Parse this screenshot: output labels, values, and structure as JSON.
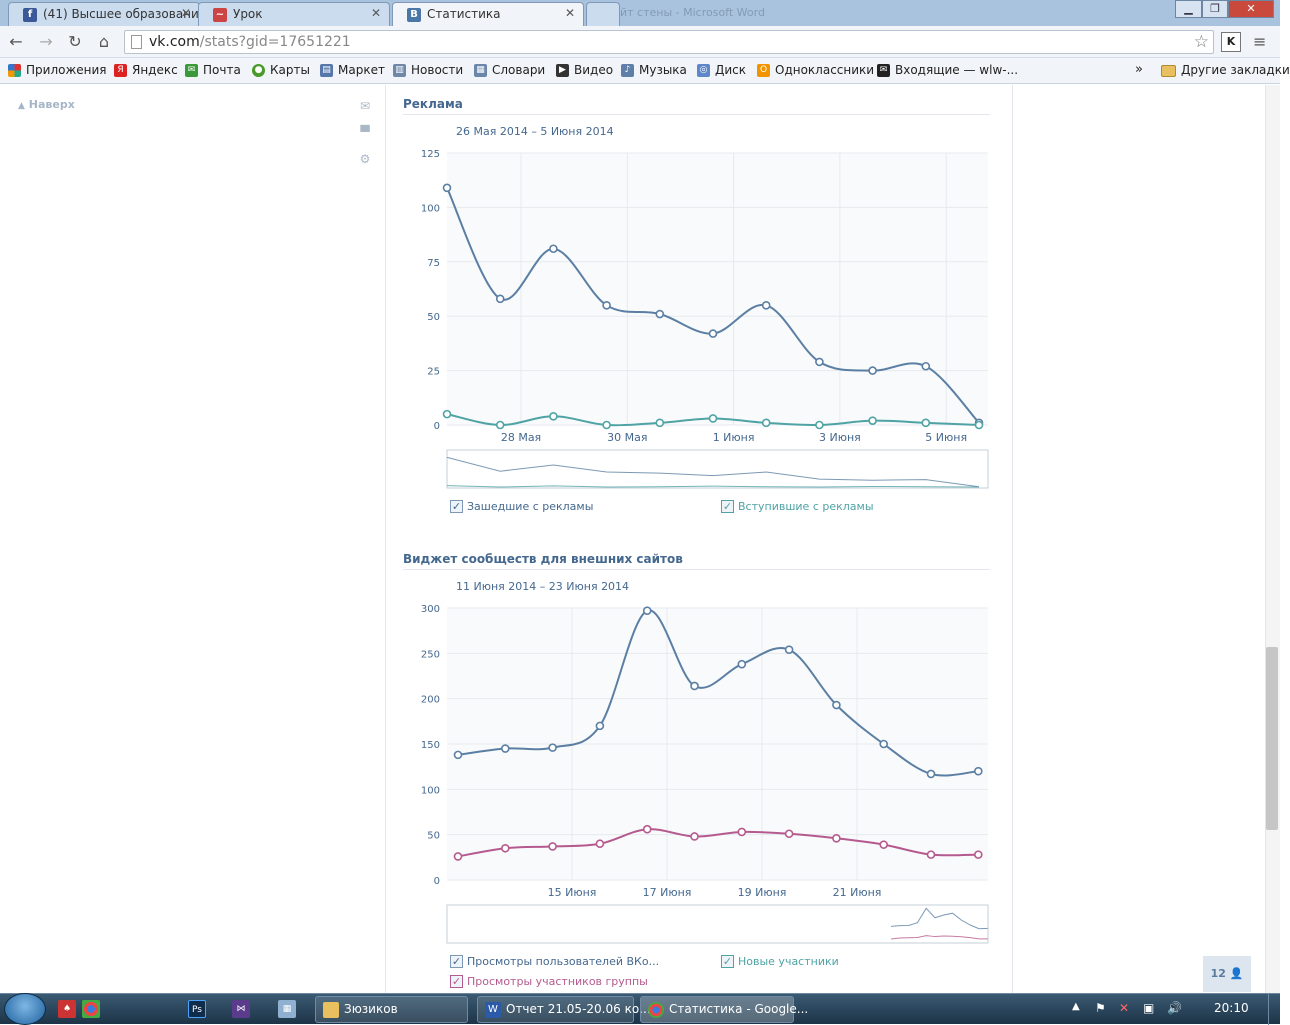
{
  "tabs": [
    {
      "label": "(41) Высшее образовани",
      "icon": "facebook-icon",
      "active": false
    },
    {
      "label": "Урок",
      "icon": "chart-icon",
      "active": false
    },
    {
      "label": "Статистика",
      "icon": "vk-icon",
      "active": true
    },
    {
      "label": "",
      "icon": "new-tab-icon",
      "active": false
    }
  ],
  "background_window_title": "йт стены - Microsoft Word",
  "toolbar": {
    "url_host": "vk.com",
    "url_path": "/stats?gid=17651221"
  },
  "bookmarks": [
    {
      "label": "Приложения",
      "icon": "apps-icon"
    },
    {
      "label": "Яндекс",
      "icon": "yandex-icon"
    },
    {
      "label": "Почта",
      "icon": "mail-icon"
    },
    {
      "label": "Карты",
      "icon": "maps-icon"
    },
    {
      "label": "Маркет",
      "icon": "market-icon"
    },
    {
      "label": "Новости",
      "icon": "news-icon"
    },
    {
      "label": "Словари",
      "icon": "dictionary-icon"
    },
    {
      "label": "Видео",
      "icon": "video-icon"
    },
    {
      "label": "Музыка",
      "icon": "music-icon"
    },
    {
      "label": "Диск",
      "icon": "disk-icon"
    },
    {
      "label": "Одноклассники",
      "icon": "odnoklassniki-icon"
    },
    {
      "label": "Входящие — wlw-...",
      "icon": "inbox-icon"
    }
  ],
  "bookmarks_more": "»",
  "other_bookmarks": "Другие закладки",
  "sidebar": {
    "up_label": "Наверх"
  },
  "sections": [
    {
      "title": "Реклама",
      "date_range": "26 Мая 2014 – 5 Июня 2014"
    },
    {
      "title": "Виджет сообществ для внешних сайтов",
      "date_range": "11 Июня 2014 – 23 Июня 2014"
    }
  ],
  "chart_data": [
    {
      "type": "line",
      "y_ticks": [
        "125",
        "100",
        "75",
        "50",
        "25",
        "0"
      ],
      "ylim": [
        0,
        125
      ],
      "x_tick_labels": [
        "28 Мая",
        "30 Мая",
        "1 Июня",
        "3 Июня",
        "5 Июня"
      ],
      "grid": true,
      "series": [
        {
          "name": "Зашедшие с рекламы",
          "color": "#5b7fa3",
          "values": [
            109,
            58,
            81,
            55,
            51,
            42,
            55,
            29,
            25,
            27,
            1
          ]
        },
        {
          "name": "Вступившие с рекламы",
          "color": "#4fa3a4",
          "values": [
            5,
            0,
            4,
            0,
            1,
            3,
            1,
            0,
            2,
            1,
            0
          ]
        }
      ]
    },
    {
      "type": "line",
      "y_ticks": [
        "300",
        "250",
        "200",
        "150",
        "100",
        "50",
        "0"
      ],
      "ylim": [
        0,
        300
      ],
      "x_tick_labels": [
        "15 Июня",
        "17 Июня",
        "19 Июня",
        "21 Июня"
      ],
      "grid": true,
      "series": [
        {
          "name": "Просмотры пользователей ВКо...",
          "color": "#5b7fa3",
          "values": [
            138,
            145,
            146,
            170,
            297,
            214,
            238,
            254,
            193,
            150,
            117,
            120
          ]
        },
        {
          "name": "Новые участники",
          "color": "#4fa3a4",
          "values": []
        },
        {
          "name": "Просмотры участников группы",
          "color": "#b55a8e",
          "values": [
            26,
            35,
            37,
            40,
            56,
            48,
            53,
            51,
            46,
            39,
            28,
            28
          ]
        }
      ]
    }
  ],
  "friends_counter": "12",
  "taskbar": {
    "windows": [
      {
        "label": "Зюзиков",
        "icon": "folder-icon"
      },
      {
        "label": "Отчет 21.05-20.06 ко...",
        "icon": "word-icon"
      },
      {
        "label": "Статистика - Google...",
        "icon": "chrome-icon"
      }
    ],
    "clock": "20:10"
  },
  "colors": {
    "vk_blue": "#45688e",
    "series_blue": "#5b7fa3",
    "series_teal": "#4fa3a4",
    "series_pink": "#b55a8e"
  }
}
